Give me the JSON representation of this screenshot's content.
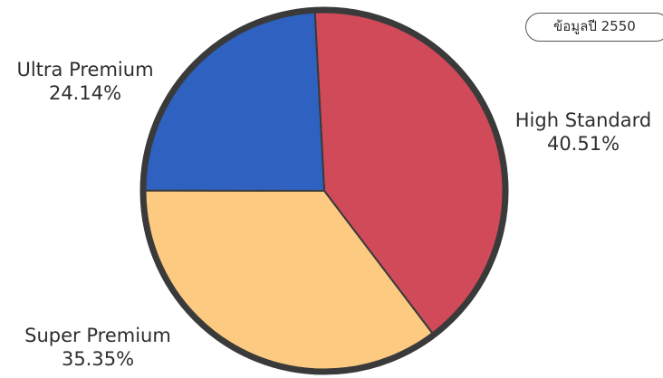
{
  "badge": {
    "text": "ข้อมูลปี 2550"
  },
  "chart_data": {
    "type": "pie",
    "title": "",
    "slices": [
      {
        "name": "High Standard",
        "value": 40.51,
        "label": "40.51%",
        "color": "#d04a5a"
      },
      {
        "name": "Super Premium",
        "value": 35.35,
        "label": "35.35%",
        "color": "#fcca80"
      },
      {
        "name": "Ultra Premium",
        "value": 24.14,
        "label": "24.14%",
        "color": "#2f62c0"
      }
    ],
    "start_angle_deg": -3,
    "direction": "clockwise",
    "outline_color": "#3a3a3a"
  }
}
